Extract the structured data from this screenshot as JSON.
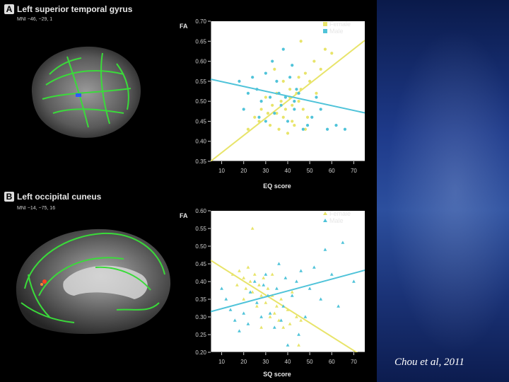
{
  "citation": "Chou et al, 2011",
  "colors": {
    "female": "#e8e46a",
    "male": "#4fc3d9",
    "tract": "#3adb3a"
  },
  "panels": [
    {
      "letter": "A",
      "title": "Left superior temporal gyrus",
      "mni": "MNI −46, −29, 1"
    },
    {
      "letter": "B",
      "title": "Left occipital cuneus",
      "mni": "MNI −14, −75, 16"
    }
  ],
  "chart_data": [
    {
      "type": "scatter",
      "title": "",
      "xlabel": "EQ score",
      "ylabel": "FA",
      "xlim": [
        5,
        75
      ],
      "ylim": [
        0.35,
        0.7
      ],
      "xticks": [
        10,
        20,
        30,
        40,
        50,
        60,
        70
      ],
      "yticks": [
        0.35,
        0.4,
        0.45,
        0.5,
        0.55,
        0.6,
        0.65,
        0.7
      ],
      "ytick_labels": [
        "0.35",
        "0.40",
        "0.45",
        "0.50",
        "0.55",
        "0.60",
        "0.65",
        "0.70"
      ],
      "legend": "top-right",
      "marker": "circle",
      "series": [
        {
          "name": "Female",
          "color": "#e8e46a",
          "fit": [
            [
              5,
              0.35
            ],
            [
              75,
              0.652
            ]
          ],
          "points": [
            [
              22,
              0.43
            ],
            [
              25,
              0.46
            ],
            [
              27,
              0.45
            ],
            [
              28,
              0.48
            ],
            [
              30,
              0.51
            ],
            [
              31,
              0.47
            ],
            [
              32,
              0.44
            ],
            [
              33,
              0.49
            ],
            [
              35,
              0.52
            ],
            [
              35,
              0.47
            ],
            [
              36,
              0.43
            ],
            [
              37,
              0.5
            ],
            [
              38,
              0.55
            ],
            [
              38,
              0.46
            ],
            [
              39,
              0.48
            ],
            [
              40,
              0.42
            ],
            [
              41,
              0.53
            ],
            [
              41,
              0.51
            ],
            [
              42,
              0.49
            ],
            [
              43,
              0.44
            ],
            [
              44,
              0.52
            ],
            [
              45,
              0.56
            ],
            [
              45,
              0.5
            ],
            [
              46,
              0.53
            ],
            [
              47,
              0.48
            ],
            [
              48,
              0.57
            ],
            [
              49,
              0.46
            ],
            [
              50,
              0.55
            ],
            [
              52,
              0.6
            ],
            [
              53,
              0.52
            ],
            [
              55,
              0.58
            ],
            [
              57,
              0.63
            ],
            [
              60,
              0.62
            ],
            [
              46,
              0.65
            ],
            [
              34,
              0.58
            ],
            [
              42,
              0.45
            ],
            [
              48,
              0.43
            ]
          ]
        },
        {
          "name": "Male",
          "color": "#4fc3d9",
          "fit": [
            [
              5,
              0.555
            ],
            [
              75,
              0.471
            ]
          ],
          "points": [
            [
              18,
              0.55
            ],
            [
              20,
              0.48
            ],
            [
              22,
              0.52
            ],
            [
              24,
              0.56
            ],
            [
              26,
              0.53
            ],
            [
              27,
              0.46
            ],
            [
              28,
              0.5
            ],
            [
              30,
              0.57
            ],
            [
              32,
              0.51
            ],
            [
              33,
              0.6
            ],
            [
              34,
              0.47
            ],
            [
              35,
              0.55
            ],
            [
              36,
              0.52
            ],
            [
              37,
              0.49
            ],
            [
              38,
              0.63
            ],
            [
              39,
              0.51
            ],
            [
              40,
              0.45
            ],
            [
              41,
              0.56
            ],
            [
              42,
              0.59
            ],
            [
              43,
              0.48
            ],
            [
              44,
              0.53
            ],
            [
              45,
              0.52
            ],
            [
              47,
              0.43
            ],
            [
              49,
              0.44
            ],
            [
              51,
              0.46
            ],
            [
              53,
              0.51
            ],
            [
              55,
              0.48
            ],
            [
              58,
              0.43
            ],
            [
              62,
              0.44
            ],
            [
              66,
              0.43
            ],
            [
              30,
              0.45
            ],
            [
              43,
              0.5
            ]
          ]
        }
      ]
    },
    {
      "type": "scatter",
      "title": "",
      "xlabel": "SQ score",
      "ylabel": "FA",
      "xlim": [
        5,
        75
      ],
      "ylim": [
        0.2,
        0.6
      ],
      "xticks": [
        10,
        20,
        30,
        40,
        50,
        60,
        70
      ],
      "yticks": [
        0.2,
        0.25,
        0.3,
        0.35,
        0.4,
        0.45,
        0.5,
        0.55,
        0.6
      ],
      "ytick_labels": [
        "0.20",
        "0.25",
        "0.30",
        "0.35",
        "0.40",
        "0.45",
        "0.50",
        "0.55",
        "0.60"
      ],
      "legend": "top-right",
      "marker": "triangle",
      "series": [
        {
          "name": "Female",
          "color": "#e8e46a",
          "fit": [
            [
              5,
              0.46
            ],
            [
              72,
              0.197
            ]
          ],
          "points": [
            [
              15,
              0.42
            ],
            [
              17,
              0.39
            ],
            [
              18,
              0.43
            ],
            [
              20,
              0.41
            ],
            [
              21,
              0.38
            ],
            [
              22,
              0.44
            ],
            [
              23,
              0.4
            ],
            [
              24,
              0.37
            ],
            [
              24,
              0.55
            ],
            [
              25,
              0.42
            ],
            [
              26,
              0.33
            ],
            [
              27,
              0.39
            ],
            [
              28,
              0.36
            ],
            [
              29,
              0.41
            ],
            [
              30,
              0.34
            ],
            [
              31,
              0.38
            ],
            [
              32,
              0.3
            ],
            [
              33,
              0.36
            ],
            [
              34,
              0.31
            ],
            [
              35,
              0.33
            ],
            [
              36,
              0.29
            ],
            [
              37,
              0.35
            ],
            [
              38,
              0.27
            ],
            [
              40,
              0.32
            ],
            [
              41,
              0.28
            ],
            [
              42,
              0.37
            ],
            [
              44,
              0.3
            ],
            [
              46,
              0.29
            ],
            [
              20,
              0.35
            ],
            [
              28,
              0.27
            ],
            [
              33,
              0.42
            ],
            [
              45,
              0.22
            ]
          ]
        },
        {
          "name": "Male",
          "color": "#4fc3d9",
          "fit": [
            [
              5,
              0.315
            ],
            [
              75,
              0.432
            ]
          ],
          "points": [
            [
              10,
              0.38
            ],
            [
              12,
              0.35
            ],
            [
              14,
              0.32
            ],
            [
              16,
              0.29
            ],
            [
              18,
              0.26
            ],
            [
              20,
              0.31
            ],
            [
              22,
              0.28
            ],
            [
              23,
              0.37
            ],
            [
              25,
              0.4
            ],
            [
              26,
              0.34
            ],
            [
              28,
              0.3
            ],
            [
              29,
              0.39
            ],
            [
              30,
              0.42
            ],
            [
              31,
              0.36
            ],
            [
              32,
              0.31
            ],
            [
              34,
              0.27
            ],
            [
              35,
              0.38
            ],
            [
              36,
              0.45
            ],
            [
              38,
              0.33
            ],
            [
              39,
              0.41
            ],
            [
              40,
              0.22
            ],
            [
              42,
              0.36
            ],
            [
              44,
              0.4
            ],
            [
              46,
              0.43
            ],
            [
              48,
              0.3
            ],
            [
              50,
              0.38
            ],
            [
              52,
              0.44
            ],
            [
              55,
              0.35
            ],
            [
              57,
              0.49
            ],
            [
              60,
              0.42
            ],
            [
              63,
              0.33
            ],
            [
              65,
              0.51
            ],
            [
              70,
              0.4
            ],
            [
              45,
              0.25
            ],
            [
              37,
              0.29
            ]
          ]
        }
      ]
    }
  ]
}
